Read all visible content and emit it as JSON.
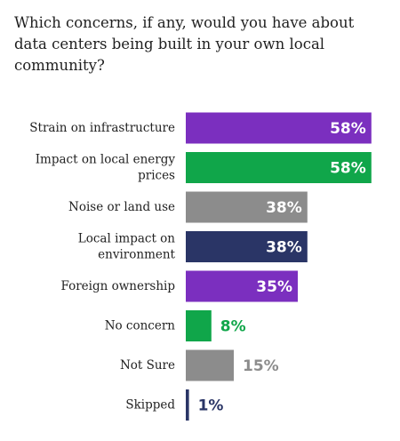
{
  "title": "Which concerns, if any, would you have about data centers being built in your own local community?",
  "chart_data": {
    "type": "bar",
    "orientation": "horizontal",
    "title": "Which concerns, if any, would you have about data centers being built in your own local community?",
    "xlabel": "",
    "ylabel": "",
    "xlim": [
      0,
      100
    ],
    "grid": false,
    "legend": "none",
    "categories": [
      [
        "Strain on infrastructure"
      ],
      [
        "Impact on local energy",
        "prices"
      ],
      [
        "Noise or land use"
      ],
      [
        "Local impact on",
        "environment"
      ],
      [
        "Foreign ownership"
      ],
      [
        "No concern"
      ],
      [
        "Not Sure"
      ],
      [
        "Skipped"
      ]
    ],
    "values": [
      58,
      58,
      38,
      38,
      35,
      8,
      15,
      1
    ],
    "value_labels": [
      "58%",
      "58%",
      "38%",
      "38%",
      "35%",
      "8%",
      "15%",
      "1%"
    ],
    "colors": [
      "#7b2fbf",
      "#10a64a",
      "#8c8c8c",
      "#2a3566",
      "#7b2fbf",
      "#10a64a",
      "#8c8c8c",
      "#2a3566"
    ]
  }
}
